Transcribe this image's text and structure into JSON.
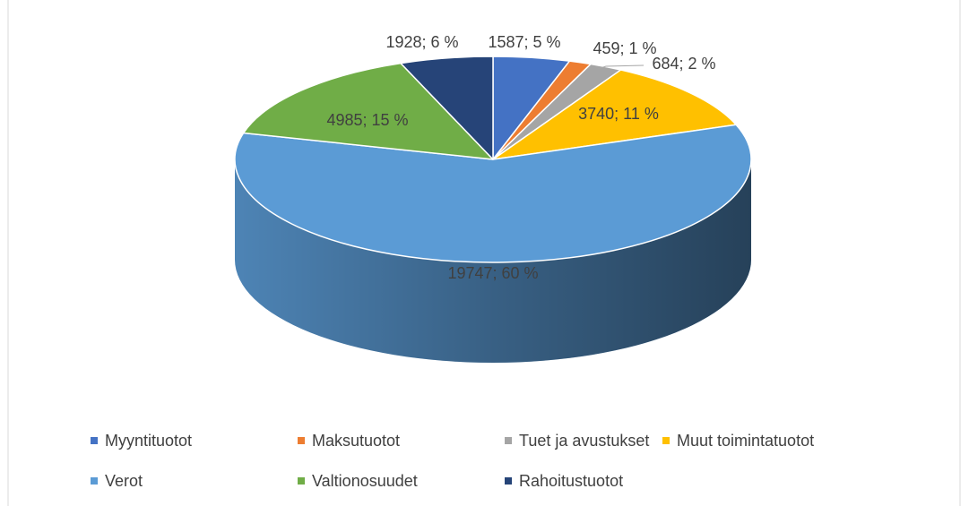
{
  "chart_data": {
    "type": "pie",
    "categories": [
      "Myyntituotot",
      "Maksutuotot",
      "Tuet ja avustukset",
      "Muut toimintatuotot",
      "Verot",
      "Valtionosuudet",
      "Rahoitustuotot"
    ],
    "values": [
      1587,
      459,
      684,
      3740,
      19747,
      4985,
      1928
    ],
    "value_labels": [
      "1587; 5 %",
      "459; 1 %",
      "684; 2 %",
      "3740; 11 %",
      "19747; 60 %",
      "4985; 15 %",
      "1928; 6 %"
    ],
    "colors": [
      "#4472c4",
      "#ed7d31",
      "#a5a5a5",
      "#ffc000",
      "#5b9bd5",
      "#70ad47",
      "#264478"
    ]
  }
}
